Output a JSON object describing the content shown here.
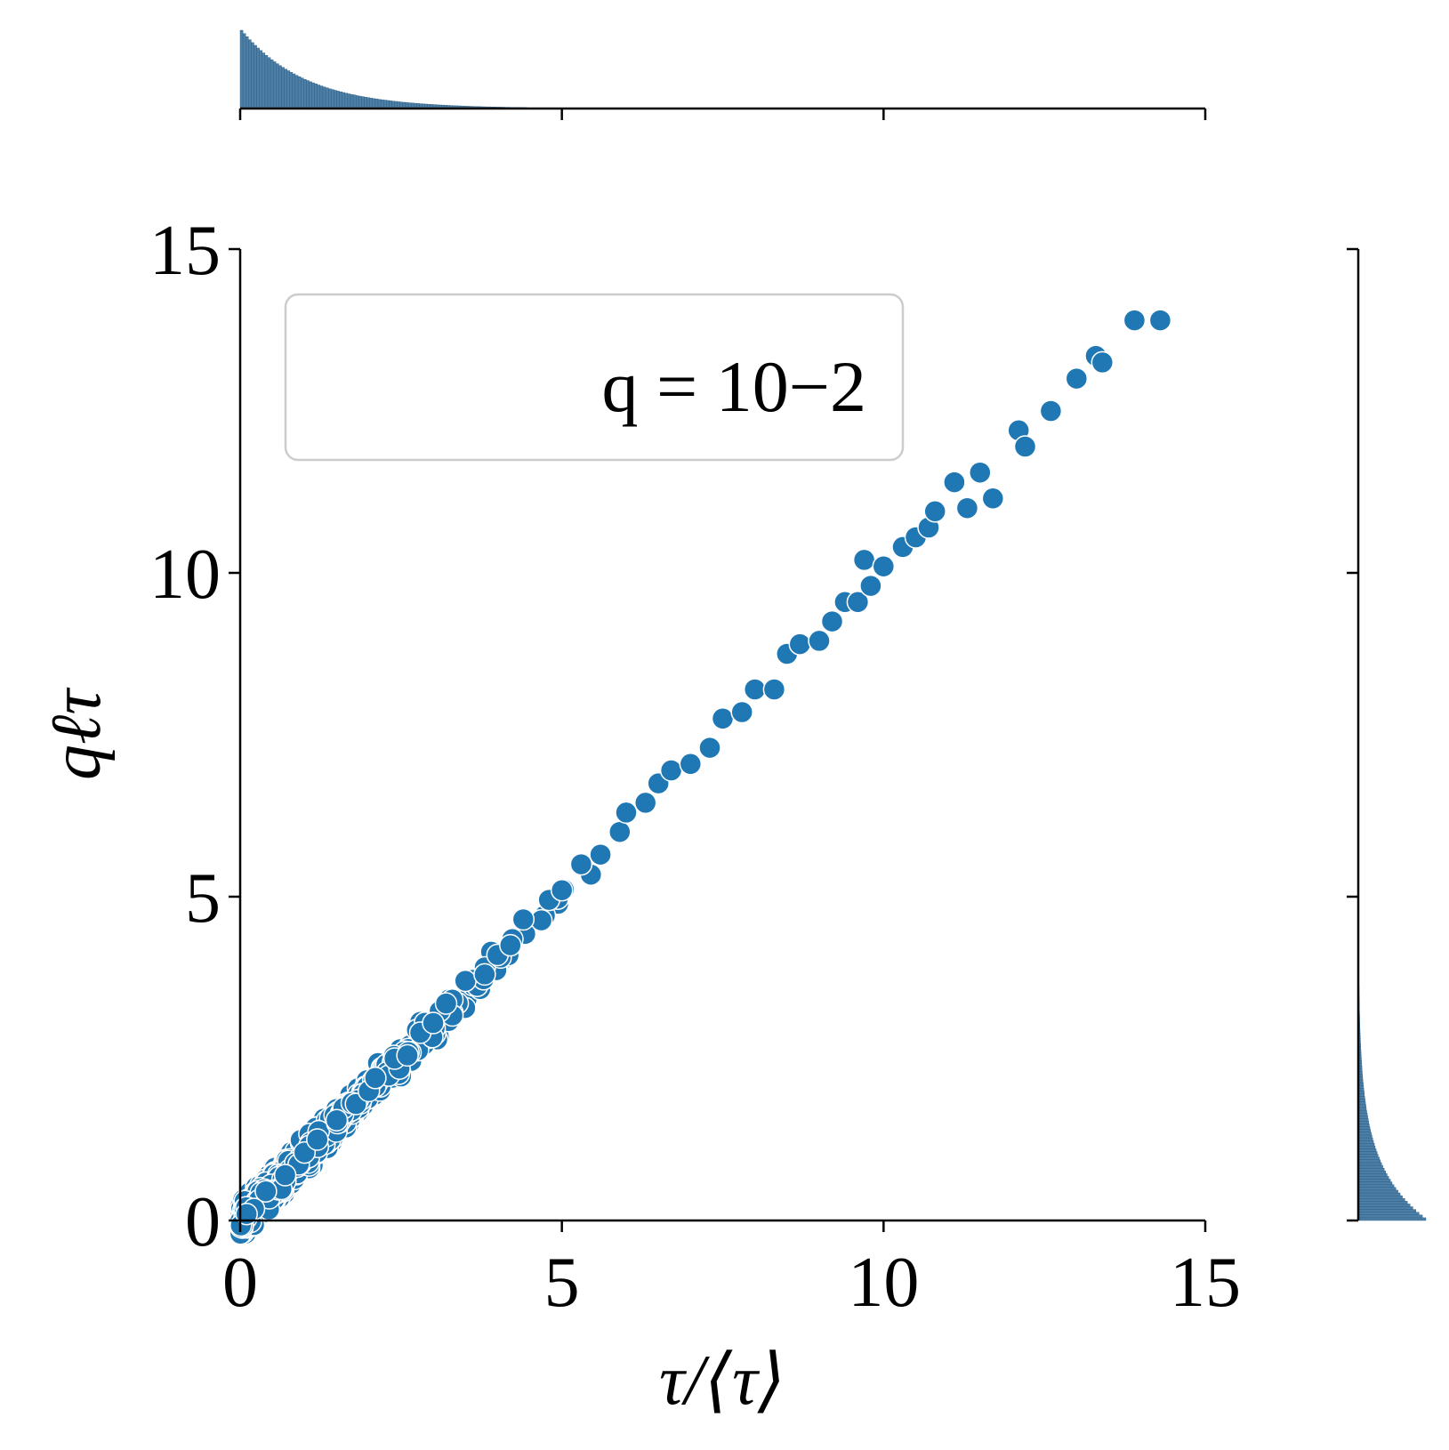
{
  "chart_data": {
    "type": "scatter",
    "title": "",
    "xlabel": "τ/⟨τ⟩",
    "ylabel": "qℓτ",
    "xlim": [
      0,
      15
    ],
    "ylim": [
      0,
      15
    ],
    "xticks": [
      "0",
      "5",
      "10",
      "15"
    ],
    "yticks": [
      "0",
      "5",
      "10",
      "15"
    ],
    "legend": {
      "text": "q = 10−2",
      "placement": "upper-left"
    },
    "grid": false,
    "marker_color": "#1f77b4",
    "histogram_color": "#4c7fa8",
    "marginal_histograms": {
      "top": "distribution of τ/⟨τ⟩",
      "right": "distribution of qℓτ",
      "shape": "decaying from 0"
    },
    "points": [
      [
        0.1,
        0.1
      ],
      [
        0.4,
        0.45
      ],
      [
        0.7,
        0.7
      ],
      [
        1.0,
        1.05
      ],
      [
        1.2,
        1.25
      ],
      [
        1.5,
        1.55
      ],
      [
        1.8,
        1.8
      ],
      [
        2.0,
        2.0
      ],
      [
        2.1,
        2.2
      ],
      [
        2.4,
        2.5
      ],
      [
        2.6,
        2.55
      ],
      [
        2.8,
        2.9
      ],
      [
        3.0,
        3.05
      ],
      [
        3.2,
        3.35
      ],
      [
        3.5,
        3.7
      ],
      [
        3.8,
        3.8
      ],
      [
        4.0,
        4.1
      ],
      [
        4.2,
        4.25
      ],
      [
        4.4,
        4.65
      ],
      [
        4.8,
        4.95
      ],
      [
        5.0,
        5.1
      ],
      [
        5.3,
        5.5
      ],
      [
        5.6,
        5.65
      ],
      [
        5.9,
        6.0
      ],
      [
        6.0,
        6.3
      ],
      [
        6.3,
        6.45
      ],
      [
        6.5,
        6.75
      ],
      [
        6.7,
        6.95
      ],
      [
        7.0,
        7.05
      ],
      [
        7.3,
        7.3
      ],
      [
        7.5,
        7.75
      ],
      [
        7.8,
        7.85
      ],
      [
        8.0,
        8.2
      ],
      [
        8.3,
        8.2
      ],
      [
        8.5,
        8.75
      ],
      [
        8.7,
        8.9
      ],
      [
        9.0,
        8.95
      ],
      [
        9.2,
        9.25
      ],
      [
        9.4,
        9.55
      ],
      [
        9.6,
        9.55
      ],
      [
        9.7,
        10.2
      ],
      [
        9.8,
        9.8
      ],
      [
        10.0,
        10.1
      ],
      [
        10.3,
        10.4
      ],
      [
        10.5,
        10.55
      ],
      [
        10.7,
        10.7
      ],
      [
        10.8,
        10.95
      ],
      [
        11.1,
        11.4
      ],
      [
        11.3,
        11.0
      ],
      [
        11.5,
        11.55
      ],
      [
        11.7,
        11.15
      ],
      [
        12.1,
        12.2
      ],
      [
        12.2,
        11.95
      ],
      [
        12.6,
        12.5
      ],
      [
        13.0,
        13.0
      ],
      [
        13.3,
        13.35
      ],
      [
        13.4,
        13.25
      ],
      [
        13.9,
        13.9
      ],
      [
        14.3,
        13.9
      ]
    ]
  }
}
